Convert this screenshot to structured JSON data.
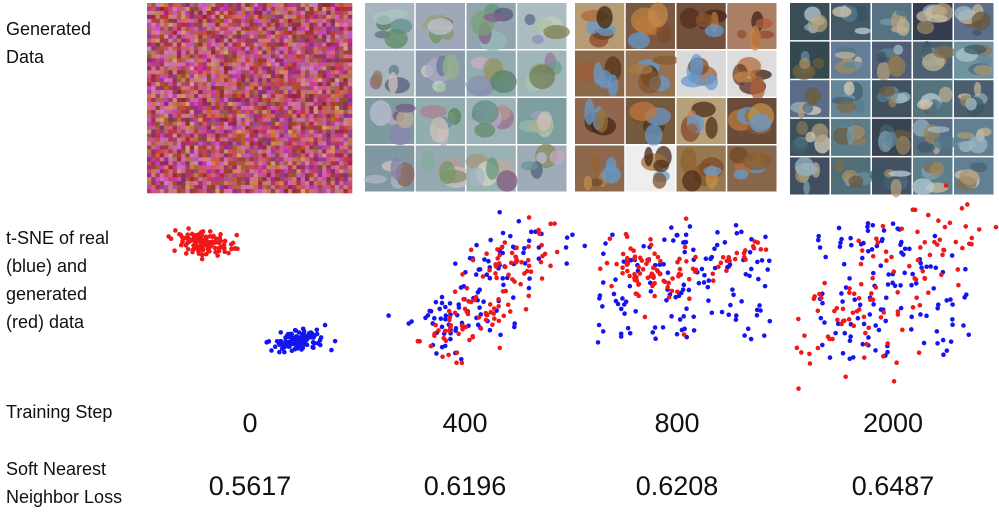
{
  "row_labels": {
    "generated_data": [
      "Generated",
      "Data"
    ],
    "tsne": [
      "t-SNE of real",
      "(blue) and",
      "generated",
      "(red) data"
    ],
    "training_step": [
      "Training Step"
    ],
    "loss": [
      "Soft Nearest",
      "Neighbor Loss"
    ]
  },
  "columns": [
    {
      "training_step": 0,
      "loss": 0.5617
    },
    {
      "training_step": 400,
      "loss": 0.6196
    },
    {
      "training_step": 800,
      "loss": 0.6208
    },
    {
      "training_step": 2000,
      "loss": 0.6487
    }
  ]
}
